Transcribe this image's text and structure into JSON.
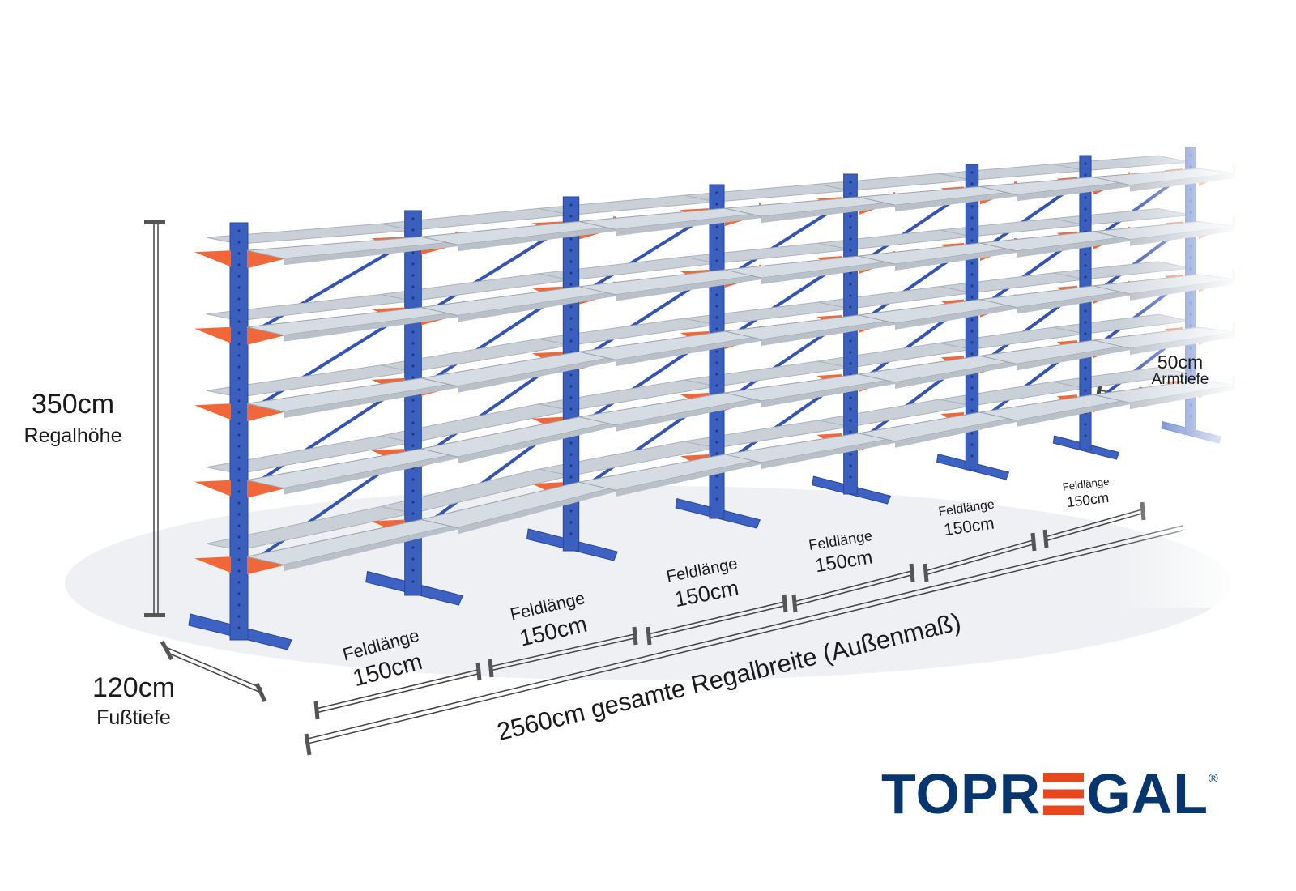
{
  "dimensions": {
    "height_value": "350cm",
    "height_label": "Regalhöhe",
    "foot_depth_value": "120cm",
    "foot_depth_label": "Fußtiefe",
    "arm_depth_value": "50cm",
    "arm_depth_label": "Armtiefe",
    "total_width": "2560cm gesamte Regalbreite  (Außenmaß)",
    "bays": [
      {
        "label": "Feldlänge",
        "value": "150cm"
      },
      {
        "label": "Feldlänge",
        "value": "150cm"
      },
      {
        "label": "Feldlänge",
        "value": "150cm"
      },
      {
        "label": "Feldlänge",
        "value": "150cm"
      },
      {
        "label": "Feldlänge",
        "value": "150cm"
      },
      {
        "label": "Feldlänge",
        "value": "150cm"
      }
    ]
  },
  "rack": {
    "uprights_visible": 7,
    "levels": 5
  },
  "brand": {
    "logo_text_1": "TOPR",
    "logo_text_2": "GAL",
    "registered": "®"
  },
  "colors": {
    "upright": "#3b5fbf",
    "arm": "#f0683a",
    "deck": "#c9d0d8",
    "brand_blue": "#07366f",
    "brand_orange": "#e8461d"
  }
}
